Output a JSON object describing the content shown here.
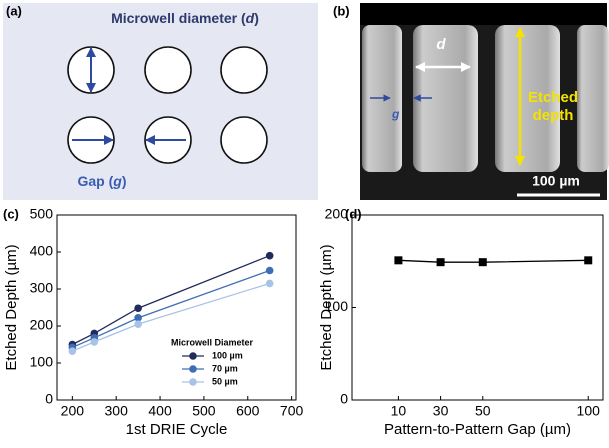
{
  "panel_a": {
    "label": "(a)",
    "title_text": "Microwell diameter (",
    "title_var": "d",
    "title_close": ")",
    "gap_text": "Gap (",
    "gap_var": "g",
    "gap_close": ")"
  },
  "panel_b": {
    "label": "(b)",
    "d_label": "d",
    "g_label": "g",
    "depth_label_1": "Etched",
    "depth_label_2": "depth",
    "scale_bar": "100 µm"
  },
  "chart_data": [
    {
      "type": "line",
      "label": "(c)",
      "x_label": "1st DRIE Cycle",
      "y_label": "Etched Depth (µm)",
      "x": [
        200,
        250,
        350,
        650
      ],
      "xlim": [
        165,
        710
      ],
      "xticks": [
        200,
        300,
        400,
        500,
        600,
        700
      ],
      "ylim": [
        0,
        500
      ],
      "yticks": [
        0,
        100,
        200,
        300,
        400,
        500
      ],
      "marker": "circle",
      "legend_title": "Microwell Diameter",
      "series": [
        {
          "name": "100 µm",
          "color": "#222b5c",
          "values": [
            150,
            180,
            248,
            390
          ]
        },
        {
          "name": "70 µm",
          "color": "#3f6db3",
          "values": [
            142,
            168,
            222,
            350
          ]
        },
        {
          "name": "50 µm",
          "color": "#a8c3e8",
          "values": [
            132,
            157,
            205,
            315
          ]
        }
      ]
    },
    {
      "type": "line",
      "label": "(d)",
      "x_label": "Pattern-to-Pattern Gap (µm)",
      "y_label": "Etched Depth (µm)",
      "x": [
        10,
        30,
        50,
        100
      ],
      "xlim": [
        -12,
        107
      ],
      "xticks": [
        10,
        30,
        50,
        100
      ],
      "ylim": [
        0,
        200
      ],
      "yticks": [
        0,
        100,
        200
      ],
      "marker": "square",
      "series": [
        {
          "color": "#000000",
          "values": [
            151,
            149,
            149,
            151
          ]
        }
      ]
    }
  ]
}
